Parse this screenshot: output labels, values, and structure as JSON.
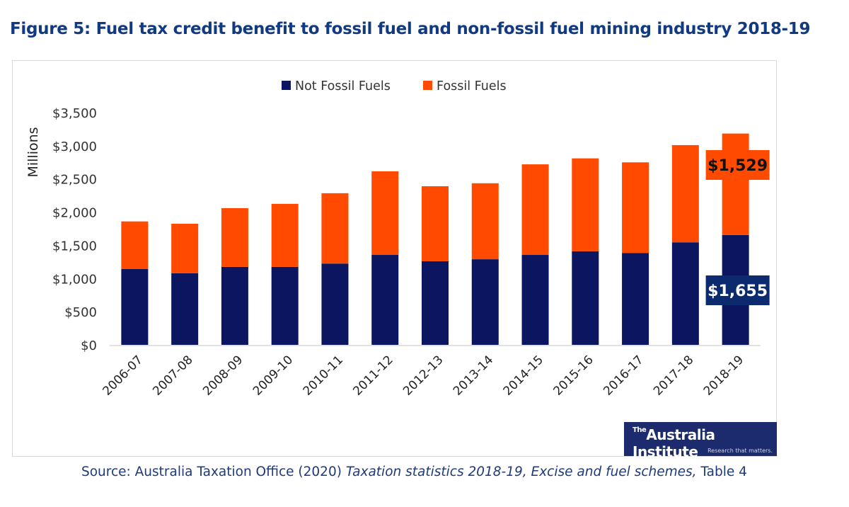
{
  "title": "Figure 5: Fuel tax credit benefit to fossil fuel and non-fossil fuel mining industry 2018-19",
  "source": {
    "prefix": "Source: Australia Taxation Office (2020) ",
    "italic": "Taxation statistics 2018-19, Excise and fuel schemes,",
    "suffix": " Table 4"
  },
  "logo": {
    "the": "The",
    "name": "Australia Institute",
    "tagline": "Research that matters."
  },
  "chart_data": {
    "type": "bar",
    "stacked": true,
    "ylabel": "Millions",
    "ylim": [
      0,
      3500
    ],
    "yticks": [
      0,
      500,
      1000,
      1500,
      2000,
      2500,
      3000,
      3500
    ],
    "ytick_labels": [
      "$0",
      "$500",
      "$1,000",
      "$1,500",
      "$2,000",
      "$2,500",
      "$3,000",
      "$3,500"
    ],
    "grid": false,
    "legend_position": "top",
    "categories": [
      "2006-07",
      "2007-08",
      "2008-09",
      "2009-10",
      "2010-11",
      "2011-12",
      "2012-13",
      "2013-14",
      "2014-15",
      "2015-16",
      "2016-17",
      "2017-18",
      "2018-19"
    ],
    "series": [
      {
        "name": "Not Fossil Fuels",
        "color": "#0c1660",
        "values": [
          1145,
          1080,
          1175,
          1175,
          1225,
          1355,
          1260,
          1290,
          1355,
          1410,
          1385,
          1545,
          1655
        ]
      },
      {
        "name": "Fossil Fuels",
        "color": "#ff4a00",
        "values": [
          715,
          745,
          885,
          950,
          1060,
          1260,
          1130,
          1145,
          1365,
          1400,
          1365,
          1465,
          1529
        ]
      }
    ],
    "annotations": [
      {
        "category": "2018-19",
        "series": "Fossil Fuels",
        "text": "$1,529"
      },
      {
        "category": "2018-19",
        "series": "Not Fossil Fuels",
        "text": "$1,655"
      }
    ]
  }
}
